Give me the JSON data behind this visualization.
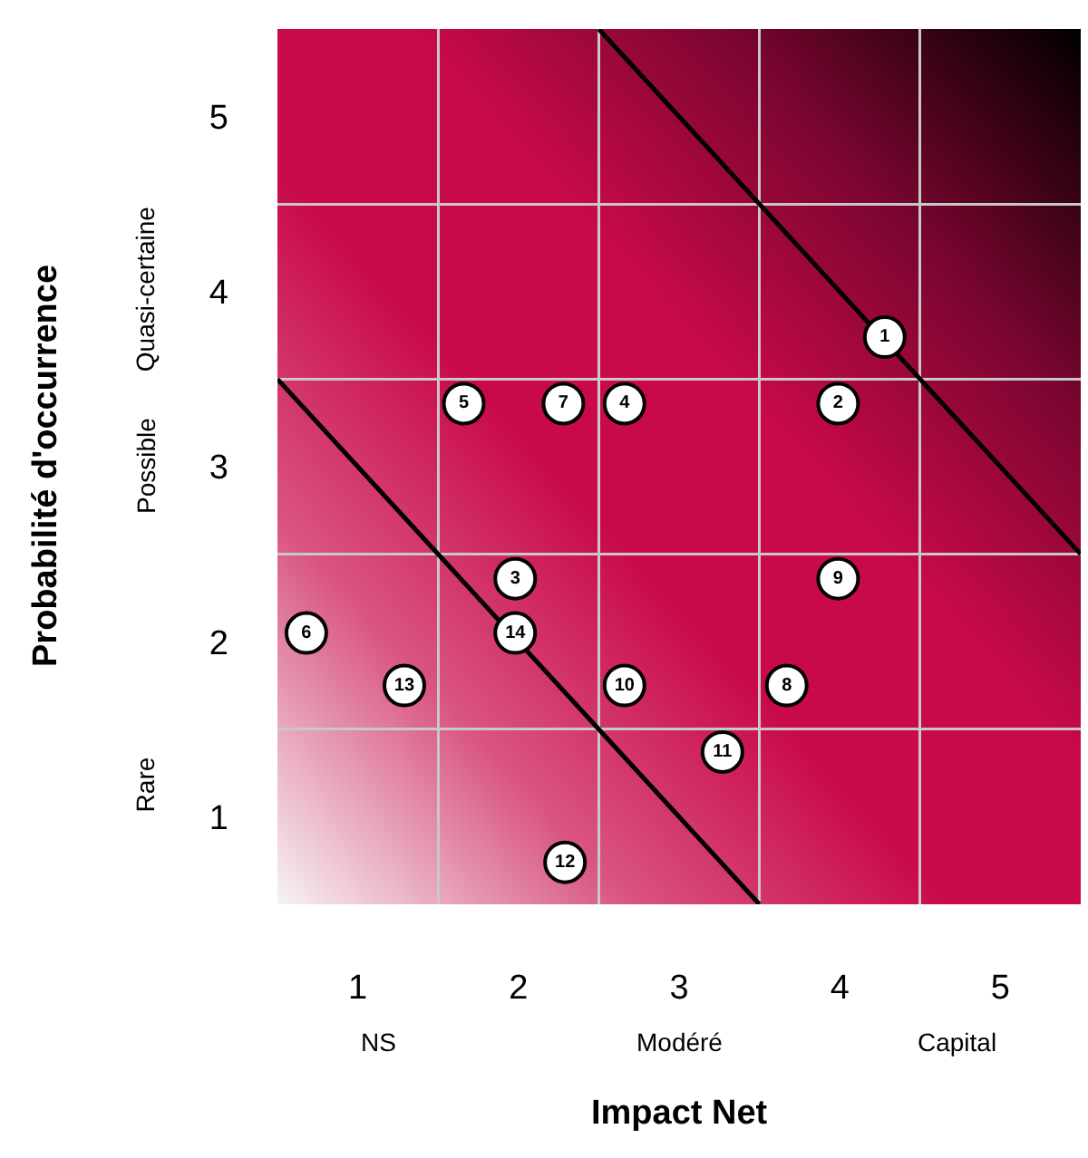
{
  "chart_data": {
    "type": "scatter",
    "xlabel": "Impact Net",
    "ylabel": "Probabilité d'occurrence",
    "xlim": [
      0.5,
      5.5
    ],
    "xticks": [
      1,
      2,
      3,
      4,
      5
    ],
    "ylim": [
      0.5,
      5.5
    ],
    "yticks": [
      1,
      2,
      3,
      4,
      5
    ],
    "annotations": [
      "NS",
      "Modéré",
      "Capital",
      "Rare",
      "Possible",
      "Quasi-certaine"
    ],
    "grid": true,
    "legend": false,
    "marker": "circle",
    "series": [
      {
        "type": "line",
        "color": "#000000",
        "marker": "none",
        "x": [
          0.5,
          3.5
        ],
        "values": [
          3.5,
          0.5
        ]
      },
      {
        "type": "line",
        "color": "#000000",
        "marker": "none",
        "x": [
          2.5,
          5.5
        ],
        "values": [
          5.5,
          2.5
        ]
      },
      {
        "name": "1",
        "color": "#ffffff",
        "x": [
          4.28
        ],
        "values": [
          3.74
        ]
      },
      {
        "name": "2",
        "color": "#ffffff",
        "x": [
          3.99
        ],
        "values": [
          3.36
        ]
      },
      {
        "name": "3",
        "color": "#ffffff",
        "x": [
          1.98
        ],
        "values": [
          2.36
        ]
      },
      {
        "name": "4",
        "color": "#ffffff",
        "x": [
          2.66
        ],
        "values": [
          3.36
        ]
      },
      {
        "name": "5",
        "color": "#ffffff",
        "x": [
          1.66
        ],
        "values": [
          3.36
        ]
      },
      {
        "name": "6",
        "color": "#ffffff",
        "x": [
          0.68
        ],
        "values": [
          2.05
        ]
      },
      {
        "name": "7",
        "color": "#ffffff",
        "x": [
          2.28
        ],
        "values": [
          3.36
        ]
      },
      {
        "name": "8",
        "color": "#ffffff",
        "x": [
          3.67
        ],
        "values": [
          1.75
        ]
      },
      {
        "name": "9",
        "color": "#ffffff",
        "x": [
          3.99
        ],
        "values": [
          2.36
        ]
      },
      {
        "name": "10",
        "color": "#ffffff",
        "x": [
          2.66
        ],
        "values": [
          1.75
        ]
      },
      {
        "name": "11",
        "color": "#ffffff",
        "x": [
          3.27
        ],
        "values": [
          1.37
        ]
      },
      {
        "name": "12",
        "color": "#ffffff",
        "x": [
          2.29
        ],
        "values": [
          0.74
        ]
      },
      {
        "name": "13",
        "color": "#ffffff",
        "x": [
          1.29
        ],
        "values": [
          1.75
        ]
      },
      {
        "name": "14",
        "color": "#ffffff",
        "x": [
          1.98
        ],
        "values": [
          2.05
        ]
      }
    ]
  }
}
